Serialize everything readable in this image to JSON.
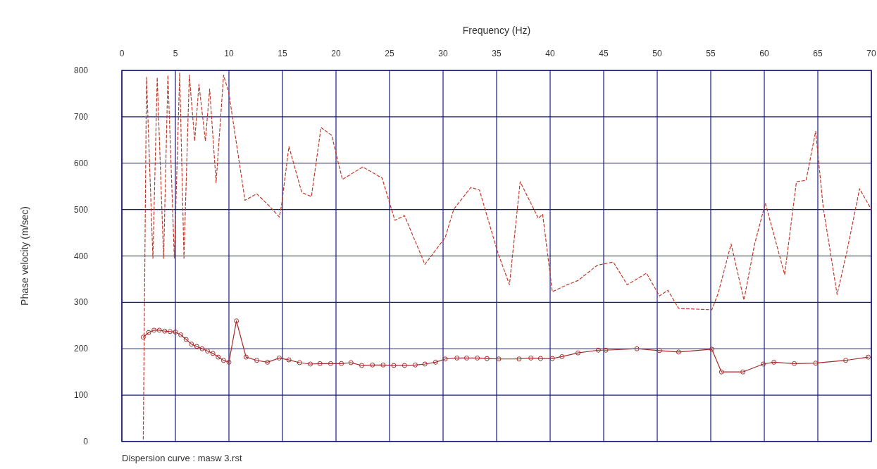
{
  "chart_data": {
    "type": "line",
    "xlabel": "Frequency (Hz)",
    "ylabel": "Phase velocity (m/sec)",
    "annotations": [
      "Dispersion curve : masw 3.rst"
    ],
    "xlim": [
      0,
      70
    ],
    "xticks": [
      0,
      5,
      10,
      15,
      20,
      25,
      30,
      35,
      40,
      45,
      50,
      55,
      60,
      65,
      70
    ],
    "ylim": [
      0,
      800
    ],
    "yticks": [
      0,
      100,
      200,
      300,
      400,
      500,
      600,
      700,
      800
    ],
    "grid": true,
    "series": [
      {
        "color": "#c0392b",
        "line_style": "dashed",
        "marker": "none",
        "x": [
          2.0,
          2.3,
          2.9,
          3.3,
          3.9,
          4.3,
          4.9,
          5.4,
          5.8,
          6.3,
          6.8,
          7.2,
          7.8,
          8.2,
          8.8,
          9.5,
          10.0,
          11.5,
          12.6,
          13.8,
          14.7,
          14.9,
          15.6,
          16.8,
          17.7,
          18.6,
          19.6,
          20.2,
          20.6,
          22.5,
          24.3,
          25.1,
          25.5,
          26.4,
          28.3,
          30.2,
          31.0,
          32.6,
          33.4,
          35.1,
          36.2,
          37.2,
          38.9,
          39.3,
          40.2,
          41.6,
          42.6,
          44.4,
          45.9,
          47.2,
          49.0,
          50.2,
          51.0,
          52.0,
          55.1,
          55.7,
          56.9,
          58.1,
          59.1,
          60.1,
          61.9,
          63.0,
          63.9,
          64.8,
          65.5,
          66.8,
          67.7,
          68.9,
          70.0
        ],
        "values": [
          5,
          785,
          395,
          785,
          395,
          790,
          395,
          795,
          395,
          790,
          648,
          770,
          648,
          760,
          558,
          790,
          750,
          520,
          534,
          507,
          484,
          507,
          636,
          537,
          528,
          677,
          660,
          602,
          565,
          592,
          568,
          507,
          477,
          487,
          382,
          440,
          501,
          548,
          542,
          408,
          338,
          560,
          481,
          490,
          323,
          338,
          347,
          380,
          387,
          338,
          363,
          314,
          326,
          287,
          284,
          320,
          426,
          305,
          426,
          514,
          360,
          560,
          563,
          669,
          505,
          317,
          408,
          545,
          500
        ]
      },
      {
        "color": "#a52a2a",
        "line_style": "solid",
        "marker": "circle",
        "x": [
          2.0,
          2.5,
          3.0,
          3.5,
          4.0,
          4.5,
          5.0,
          5.5,
          6.0,
          6.5,
          7.0,
          7.5,
          8.0,
          8.5,
          9.0,
          9.5,
          10.0,
          10.7,
          11.6,
          12.6,
          13.6,
          14.7,
          15.6,
          16.6,
          17.6,
          18.5,
          19.5,
          20.5,
          21.4,
          22.4,
          23.4,
          24.4,
          25.4,
          26.4,
          27.4,
          28.3,
          29.3,
          30.2,
          31.3,
          32.2,
          33.2,
          34.1,
          35.2,
          37.1,
          38.2,
          39.1,
          40.2,
          41.1,
          42.6,
          44.5,
          45.2,
          48.1,
          50.2,
          52.0,
          55.1,
          56.0,
          58.0,
          59.9,
          60.9,
          62.8,
          64.8,
          67.6,
          69.7
        ],
        "values": [
          225,
          235,
          240,
          240,
          238,
          237,
          236,
          230,
          220,
          210,
          205,
          200,
          195,
          190,
          182,
          175,
          171,
          260,
          182,
          175,
          171,
          180,
          176,
          170,
          167,
          168,
          168,
          168,
          170,
          164,
          165,
          165,
          164,
          164,
          165,
          167,
          171,
          178,
          180,
          180,
          180,
          179,
          178,
          178,
          180,
          179,
          179,
          183,
          191,
          197,
          197,
          200,
          196,
          193,
          199,
          150,
          150,
          167,
          171,
          168,
          169,
          175,
          182
        ]
      }
    ]
  }
}
